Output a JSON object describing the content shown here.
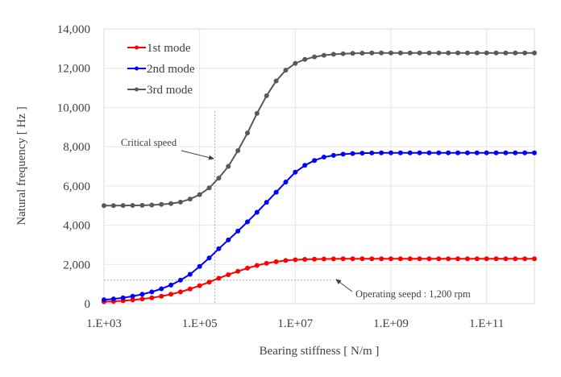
{
  "chart_data": {
    "type": "line",
    "title": "",
    "xlabel": "Bearing stiffness [ N/m ]",
    "ylabel": "Natural frequency [ Hz ]",
    "xscale": "log",
    "xlim": [
      1000,
      1000000000000
    ],
    "ylim": [
      0,
      14000
    ],
    "grid": true,
    "legend_position": "top-left",
    "x_ticks": [
      1000,
      100000,
      10000000,
      1000000000,
      100000000000
    ],
    "x_tick_labels": [
      "1.E+03",
      "1.E+05",
      "1.E+07",
      "1.E+09",
      "1.E+11"
    ],
    "y_ticks": [
      0,
      2000,
      4000,
      6000,
      8000,
      10000,
      12000,
      14000
    ],
    "y_tick_labels": [
      "0",
      "2,000",
      "4,000",
      "6,000",
      "8,000",
      "10,000",
      "12,000",
      "14,000"
    ],
    "x_log10": [
      3.0,
      3.2,
      3.4,
      3.6,
      3.8,
      4.0,
      4.2,
      4.4,
      4.6,
      4.8,
      5.0,
      5.2,
      5.4,
      5.6,
      5.8,
      6.0,
      6.2,
      6.4,
      6.6,
      6.8,
      7.0,
      7.2,
      7.4,
      7.6,
      7.8,
      8.0,
      8.2,
      8.4,
      8.6,
      8.8,
      9.0,
      9.2,
      9.4,
      9.6,
      9.8,
      10.0,
      10.2,
      10.4,
      10.6,
      10.8,
      11.0,
      11.2,
      11.4,
      11.6,
      11.8,
      12.0
    ],
    "series": [
      {
        "name": "1st mode",
        "color": "#ff0000",
        "values": [
          100,
          120,
          150,
          190,
          240,
          300,
          380,
          480,
          600,
          750,
          920,
          1100,
          1300,
          1480,
          1650,
          1810,
          1950,
          2060,
          2140,
          2200,
          2240,
          2260,
          2270,
          2280,
          2285,
          2290,
          2290,
          2290,
          2290,
          2290,
          2290,
          2290,
          2290,
          2290,
          2290,
          2290,
          2290,
          2290,
          2290,
          2290,
          2290,
          2290,
          2290,
          2290,
          2290,
          2290
        ]
      },
      {
        "name": "2nd mode",
        "color": "#0000ff",
        "values": [
          200,
          240,
          300,
          380,
          480,
          600,
          760,
          950,
          1200,
          1500,
          1900,
          2330,
          2800,
          3250,
          3700,
          4170,
          4660,
          5170,
          5680,
          6200,
          6700,
          7050,
          7300,
          7470,
          7560,
          7620,
          7650,
          7670,
          7680,
          7690,
          7690,
          7690,
          7690,
          7690,
          7690,
          7690,
          7690,
          7690,
          7690,
          7690,
          7690,
          7690,
          7690,
          7690,
          7690,
          7690
        ]
      },
      {
        "name": "3rd mode",
        "color": "#595959",
        "values": [
          5000,
          5000,
          5005,
          5010,
          5015,
          5030,
          5060,
          5100,
          5180,
          5330,
          5560,
          5900,
          6400,
          7000,
          7800,
          8700,
          9700,
          10600,
          11350,
          11900,
          12250,
          12450,
          12580,
          12660,
          12710,
          12740,
          12760,
          12770,
          12780,
          12780,
          12780,
          12780,
          12780,
          12780,
          12780,
          12780,
          12780,
          12780,
          12780,
          12780,
          12780,
          12780,
          12780,
          12780,
          12780,
          12780
        ]
      }
    ],
    "annotations": [
      {
        "text": "Critical speed",
        "type": "vertical-guide",
        "x_log10": 5.32,
        "y_top": 9800
      },
      {
        "text": "Operating seepd : 1,200 rpm",
        "type": "horizontal-guide",
        "y": 1200,
        "x_end_log10": 7.8
      }
    ]
  }
}
